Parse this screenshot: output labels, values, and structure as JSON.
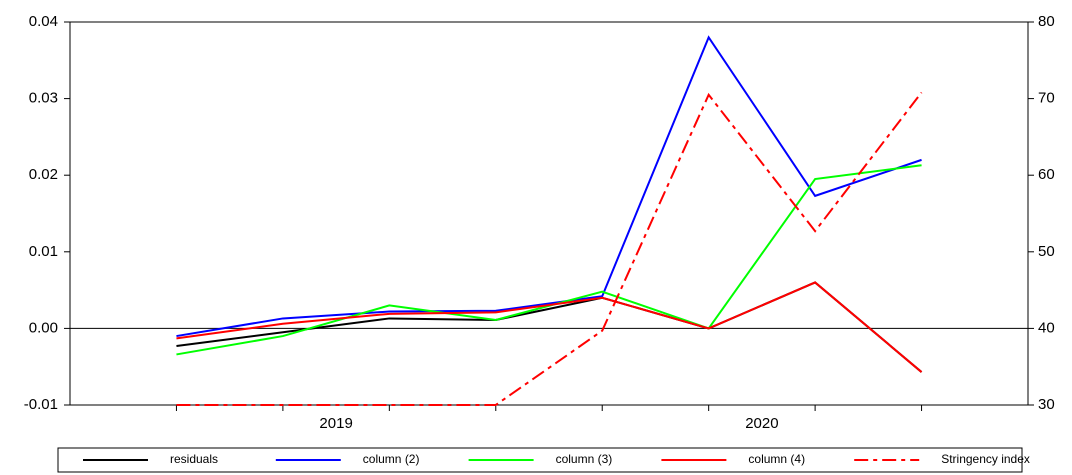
{
  "chart_data": {
    "type": "line",
    "categories": [
      null,
      null,
      null,
      null,
      null,
      null,
      null,
      null
    ],
    "category_groups": [
      {
        "label": "2019",
        "size": 4
      },
      {
        "label": "2020",
        "size": 4
      }
    ],
    "ylim": [
      -0.01,
      0.04
    ],
    "yticks": [
      -0.01,
      {
        "value": 0,
        "label": "0.00"
      },
      0.01,
      0.02,
      0.03,
      0.04
    ],
    "y2lim": [
      30,
      80
    ],
    "y2ticks": [
      30,
      40,
      50,
      60,
      70,
      80
    ],
    "legend": "bottom",
    "series": [
      {
        "name": "residuals",
        "color": "#000000",
        "style": "solid",
        "values": [
          -0.0023,
          -0.0005,
          0.0013,
          0.0011,
          0.004,
          0.0,
          0.006,
          -0.0057
        ]
      },
      {
        "name": "column (2)",
        "color": "#0000ff",
        "style": "solid",
        "values": [
          -0.001,
          0.0013,
          0.0022,
          0.0023,
          0.0042,
          0.038,
          0.0173,
          0.022
        ]
      },
      {
        "name": "column (3)",
        "color": "#00ff00",
        "style": "solid",
        "values": [
          -0.0034,
          -0.001,
          0.003,
          0.0011,
          0.0048,
          0.0,
          0.0195,
          0.0213
        ]
      },
      {
        "name": "column (4)",
        "color": "#ff0000",
        "style": "solid",
        "values": [
          -0.0013,
          0.0006,
          0.0019,
          0.0021,
          0.004,
          0.0,
          0.006,
          -0.0057
        ]
      },
      {
        "name": "Stringency index",
        "color": "#ff0000",
        "style": "dashdot",
        "axis": "y2",
        "values": [
          30,
          30,
          30,
          30,
          39.7,
          70.5,
          52.7,
          70.8
        ]
      }
    ]
  }
}
